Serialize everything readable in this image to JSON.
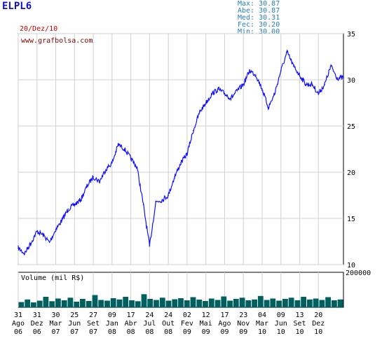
{
  "header": {
    "ticker": "ELPL6",
    "date": "20/Dez/10",
    "stats": [
      {
        "label": "Max:",
        "value": "30.87"
      },
      {
        "label": "Abe:",
        "value": "30.87"
      },
      {
        "label": "Med:",
        "value": "30.31"
      },
      {
        "label": "Fec:",
        "value": "30.20"
      },
      {
        "label": "Min:",
        "value": "30.00"
      }
    ]
  },
  "colors": {
    "price": "#1010ff",
    "volume": "#006060",
    "grid": "#d0d0d0",
    "axis": "#000000",
    "watermark": "#800000"
  },
  "chart_data": [
    {
      "type": "line",
      "watermark": "www.grafbolsa.com",
      "ylim": [
        10,
        35
      ],
      "yticks": [
        "35",
        "30",
        "25",
        "20",
        "15",
        "10"
      ],
      "xlim": [
        0,
        52
      ],
      "x": [
        0,
        1,
        2,
        3,
        4,
        5,
        6,
        7,
        8,
        9,
        10,
        11,
        12,
        13,
        14,
        15,
        16,
        17,
        18,
        19,
        20,
        21,
        22,
        23,
        24,
        25,
        26,
        27,
        28,
        29,
        30,
        31,
        32,
        33,
        34,
        35,
        36,
        37,
        38,
        39,
        40,
        41,
        42,
        43,
        44,
        45,
        46,
        47,
        48,
        49,
        50,
        51,
        52
      ],
      "values": [
        11.8,
        11.2,
        12.3,
        13.6,
        13.2,
        12.4,
        13.8,
        14.8,
        16.0,
        16.5,
        17.0,
        18.5,
        19.5,
        19.0,
        20.3,
        21.0,
        23.0,
        22.5,
        21.5,
        20.5,
        16.5,
        12.0,
        16.8,
        17.0,
        17.5,
        19.5,
        21.0,
        22.0,
        24.5,
        26.5,
        27.5,
        28.5,
        29.0,
        28.5,
        28.0,
        28.8,
        29.5,
        31.0,
        30.5,
        29.0,
        27.0,
        28.5,
        31.0,
        33.0,
        31.5,
        30.5,
        29.5,
        29.5,
        28.5,
        29.5,
        31.5,
        30.2,
        30.2
      ],
      "xticks": [
        {
          "x": 0,
          "top": "31",
          "bottom": "Ago",
          "year": "06"
        },
        {
          "x": 3,
          "top": "31",
          "bottom": "Dez",
          "year": "06"
        },
        {
          "x": 6,
          "top": "30",
          "bottom": "Mar",
          "year": "07"
        },
        {
          "x": 9,
          "top": "25",
          "bottom": "Jun",
          "year": "07"
        },
        {
          "x": 12,
          "top": "27",
          "bottom": "Set",
          "year": "07"
        },
        {
          "x": 15,
          "top": "09",
          "bottom": "Jan",
          "year": "08"
        },
        {
          "x": 18,
          "top": "17",
          "bottom": "Abr",
          "year": "08"
        },
        {
          "x": 21,
          "top": "24",
          "bottom": "Jul",
          "year": "08"
        },
        {
          "x": 24,
          "top": "24",
          "bottom": "Out",
          "year": "08"
        },
        {
          "x": 27,
          "top": "02",
          "bottom": "Fev",
          "year": "09"
        },
        {
          "x": 30,
          "top": "12",
          "bottom": "Mai",
          "year": "09"
        },
        {
          "x": 33,
          "top": "17",
          "bottom": "Ago",
          "year": "09"
        },
        {
          "x": 36,
          "top": "23",
          "bottom": "Nov",
          "year": "09"
        },
        {
          "x": 39,
          "top": "04",
          "bottom": "Mar",
          "year": "10"
        },
        {
          "x": 42,
          "top": "09",
          "bottom": "Jun",
          "year": "10"
        },
        {
          "x": 45,
          "top": "13",
          "bottom": "Set",
          "year": "10"
        },
        {
          "x": 48,
          "top": "20",
          "bottom": "Dez",
          "year": "10"
        }
      ]
    },
    {
      "type": "bar",
      "title": "Volume (mil R$)",
      "ylim": [
        0,
        200000
      ],
      "yticks": [
        "200000"
      ],
      "values": [
        30000,
        45000,
        28000,
        38000,
        60000,
        35000,
        50000,
        40000,
        55000,
        32000,
        48000,
        36000,
        70000,
        42000,
        38000,
        52000,
        45000,
        60000,
        40000,
        35000,
        75000,
        48000,
        42000,
        55000,
        38000,
        46000,
        52000,
        40000,
        58000,
        44000,
        36000,
        50000,
        42000,
        62000,
        38000,
        48000,
        55000,
        40000,
        45000,
        65000,
        42000,
        50000,
        38000,
        48000,
        55000,
        40000,
        60000,
        45000,
        50000,
        42000,
        58000,
        40000,
        45000
      ]
    }
  ]
}
